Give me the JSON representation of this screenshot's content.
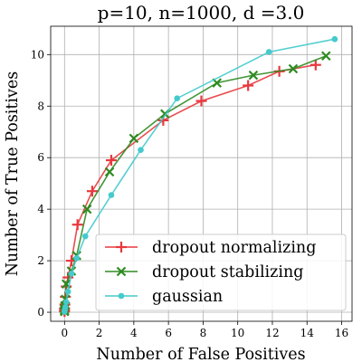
{
  "chart_data": {
    "type": "line",
    "title": "p=10, n=1000, d =3.0",
    "xlabel": "Number of False Positives",
    "ylabel": "Number of True Positives",
    "xlim": [
      -0.8,
      16.6
    ],
    "ylim": [
      -0.35,
      11.1
    ],
    "xticks": [
      0,
      2,
      4,
      6,
      8,
      10,
      12,
      14,
      16
    ],
    "yticks": [
      0,
      2,
      4,
      6,
      8,
      10
    ],
    "grid": true,
    "legend_position": "lower right",
    "series": [
      {
        "name": "dropout normalizing",
        "color": "#e8383d",
        "marker": "plus",
        "x": [
          0,
          0,
          0,
          0.02,
          0.05,
          0.1,
          0.2,
          0.4,
          0.75,
          1.6,
          2.7,
          5.7,
          7.9,
          10.6,
          12.4,
          14.5
        ],
        "y": [
          0.03,
          0.08,
          0.15,
          0.3,
          0.6,
          1.0,
          1.35,
          2.0,
          3.4,
          4.7,
          5.9,
          7.45,
          8.2,
          8.8,
          9.35,
          9.6
        ]
      },
      {
        "name": "dropout stabilizing",
        "color": "#2e8b22",
        "marker": "x",
        "x": [
          0,
          0,
          0,
          0.02,
          0.05,
          0.1,
          0.4,
          0.7,
          1.3,
          2.6,
          4.0,
          5.8,
          8.8,
          10.9,
          13.2,
          15.1
        ],
        "y": [
          0.03,
          0.07,
          0.13,
          0.25,
          0.5,
          1.1,
          1.6,
          2.2,
          4.0,
          5.45,
          6.75,
          7.7,
          8.9,
          9.2,
          9.45,
          9.95
        ]
      },
      {
        "name": "gaussian",
        "color": "#44cacc",
        "marker": "circle",
        "x": [
          0,
          0,
          0.02,
          0.05,
          0.1,
          0.2,
          0.4,
          0.7,
          1.2,
          2.7,
          4.4,
          6.5,
          11.8,
          15.6
        ],
        "y": [
          0.02,
          0.05,
          0.1,
          0.2,
          0.4,
          0.8,
          1.5,
          2.1,
          2.95,
          4.55,
          6.3,
          8.3,
          10.1,
          10.6
        ]
      }
    ]
  }
}
